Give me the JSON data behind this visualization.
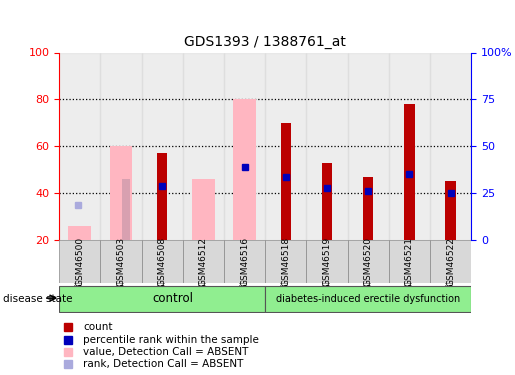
{
  "title": "GDS1393 / 1388761_at",
  "samples": [
    "GSM46500",
    "GSM46503",
    "GSM46508",
    "GSM46512",
    "GSM46516",
    "GSM46518",
    "GSM46519",
    "GSM46520",
    "GSM46521",
    "GSM46522"
  ],
  "red_bars": [
    null,
    null,
    57,
    null,
    null,
    70,
    53,
    47,
    78,
    45
  ],
  "pink_bars": [
    26,
    60,
    null,
    46,
    80,
    null,
    null,
    null,
    null,
    null
  ],
  "pink_rank_bars": [
    null,
    46,
    null,
    null,
    null,
    null,
    null,
    null,
    null,
    null
  ],
  "blue_squares": [
    null,
    null,
    43,
    null,
    51,
    47,
    42,
    41,
    48,
    40
  ],
  "light_blue_sq": [
    35,
    null,
    null,
    null,
    null,
    null,
    null,
    null,
    null,
    null
  ],
  "ylim": [
    20,
    100
  ],
  "yticks_left": [
    20,
    40,
    60,
    80,
    100
  ],
  "yticks_right": [
    0,
    25,
    50,
    75,
    100
  ],
  "right_ylabels": [
    "0",
    "25",
    "50",
    "75",
    "100%"
  ],
  "pink_bar_color": "#FFB6C1",
  "red_bar_color": "#BB0000",
  "blue_sq_color": "#0000BB",
  "lblue_sq_color": "#AAAADD",
  "col_bg_color": "#D8D8D8",
  "control_bg": "#90EE90",
  "diabetes_bg": "#90EE90",
  "group_label_control": "control",
  "group_label_diabetes": "diabetes-induced erectile dysfunction",
  "disease_state_label": "disease state",
  "n_control": 5,
  "n_total": 10
}
